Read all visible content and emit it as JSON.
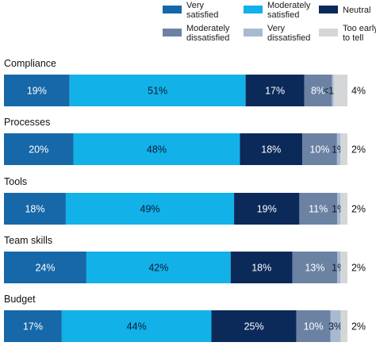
{
  "chart_data": {
    "type": "bar",
    "orientation": "horizontal",
    "stacked": true,
    "categories": [
      "Compliance",
      "Processes",
      "Tools",
      "Team skills",
      "Budget"
    ],
    "series": [
      {
        "name": "Very satisfied",
        "color": "#1768A8",
        "values": [
          19,
          20,
          18,
          24,
          17
        ],
        "labels": [
          "19%",
          "20%",
          "18%",
          "24%",
          "17%"
        ]
      },
      {
        "name": "Moderately satisfied",
        "color": "#12B1E8",
        "values": [
          51,
          48,
          49,
          42,
          44
        ],
        "labels": [
          "51%",
          "48%",
          "49%",
          "42%",
          "44%"
        ]
      },
      {
        "name": "Neutral",
        "color": "#0B2A59",
        "values": [
          17,
          18,
          19,
          18,
          25
        ],
        "labels": [
          "17%",
          "18%",
          "19%",
          "18%",
          "25%"
        ]
      },
      {
        "name": "Moderately dissatisfied",
        "color": "#6C82A3",
        "values": [
          8,
          10,
          11,
          13,
          10
        ],
        "labels": [
          "8%",
          "10%",
          "11%",
          "13%",
          "10%"
        ]
      },
      {
        "name": "Very dissatisfied",
        "color": "#A8B9D2",
        "values": [
          0.5,
          1,
          1,
          1,
          3
        ],
        "labels": [
          "<1%",
          "1%",
          "1%",
          "1%",
          "3%"
        ]
      },
      {
        "name": "Too early to tell",
        "color": "#D5D6D8",
        "values": [
          4,
          2,
          2,
          2,
          2
        ],
        "labels": [
          "4%",
          "2%",
          "2%",
          "2%",
          "2%"
        ]
      }
    ],
    "xlim": [
      0,
      100
    ],
    "legend_position": "top",
    "grid": false
  }
}
